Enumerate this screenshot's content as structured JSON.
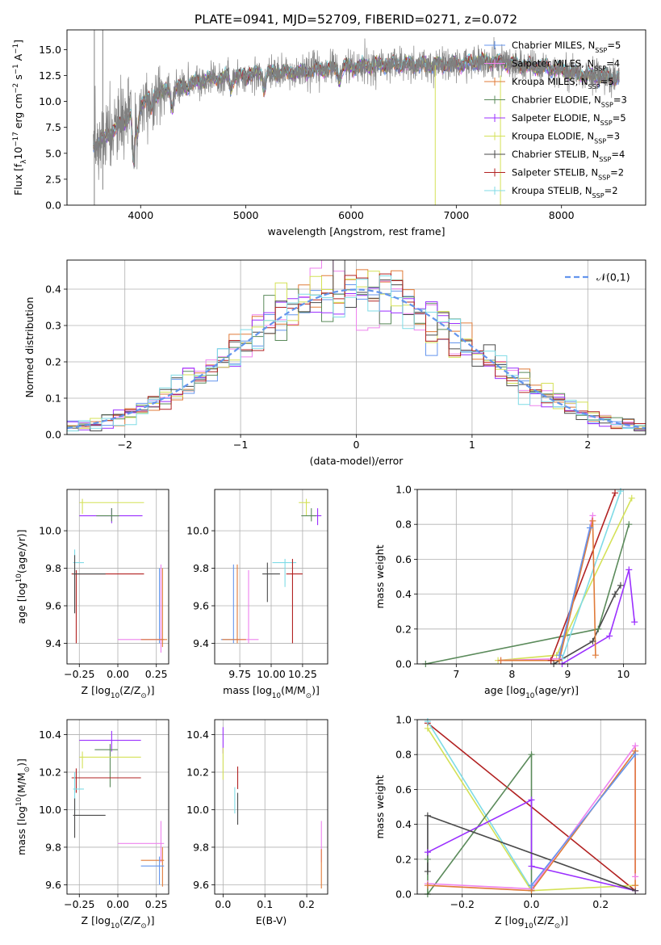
{
  "title": "PLATE=0941, MJD=52709, FIBERID=0271, z=0.072",
  "colors": {
    "chabrier_miles": "#6495ED",
    "salpeter_miles": "#EE82EE",
    "kroupa_miles": "#E07B39",
    "chabrier_elodie": "#5A8A5A",
    "salpeter_elodie": "#9B30FF",
    "kroupa_elodie": "#D4E157",
    "chabrier_stelib": "#4A4A4A",
    "salpeter_stelib": "#B22222",
    "kroupa_stelib": "#7FDBE6",
    "data": "#808080",
    "gaussian": "#6495ED"
  },
  "legend_models": [
    {
      "key": "chabrier_miles",
      "label": "Chabrier MILES, N$SSP$=5"
    },
    {
      "key": "salpeter_miles",
      "label": "Salpeter MILES, N$SSP$=4"
    },
    {
      "key": "kroupa_miles",
      "label": "Kroupa MILES, N$SSP$=5"
    },
    {
      "key": "chabrier_elodie",
      "label": "Chabrier ELODIE, N$SSP$=3"
    },
    {
      "key": "salpeter_elodie",
      "label": "Salpeter ELODIE, N$SSP$=5"
    },
    {
      "key": "kroupa_elodie",
      "label": "Kroupa ELODIE, N$SSP$=3"
    },
    {
      "key": "chabrier_stelib",
      "label": "Chabrier STELIB, N$SSP$=4"
    },
    {
      "key": "salpeter_stelib",
      "label": "Salpeter STELIB, N$SSP$=2"
    },
    {
      "key": "kroupa_stelib",
      "label": "Kroupa STELIB, N$SSP$=2"
    }
  ],
  "chart_data": [
    {
      "id": "spectrum",
      "type": "line",
      "xlabel": "wavelength [Angstrom, rest frame]",
      "ylabel": "Flux [f$λ$10$−17$ erg cm$−2$ s$−1$ A$−1$]",
      "xlim": [
        3300,
        8800
      ],
      "ylim": [
        0,
        16.9
      ],
      "xticks": [
        4000,
        5000,
        6000,
        7000,
        8000
      ],
      "yticks": [
        0.0,
        2.5,
        5.0,
        7.5,
        10.0,
        12.5,
        15.0
      ],
      "grid": false,
      "legend_position": "top-right",
      "continuum": {
        "x": [
          3550,
          3650,
          3750,
          3850,
          3950,
          4050,
          4200,
          4400,
          4600,
          4800,
          5000,
          5200,
          5500,
          5800,
          6100,
          6400,
          6700,
          7000,
          7300,
          7600,
          7900,
          8200,
          8500
        ],
        "y": [
          5.8,
          6.4,
          7.3,
          8.1,
          9.4,
          10.2,
          10.9,
          11.4,
          12.1,
          12.3,
          12.5,
          12.8,
          12.8,
          13.2,
          13.4,
          13.6,
          13.5,
          13.6,
          13.9,
          13.5,
          13.2,
          12.6,
          12.2
        ]
      },
      "absorption_dips": [
        {
          "x": 3934,
          "y": 4.0
        },
        {
          "x": 3969,
          "y": 6.8
        },
        {
          "x": 4101,
          "y": 9.2
        },
        {
          "x": 4300,
          "y": 9.5
        },
        {
          "x": 4861,
          "y": 11.3
        },
        {
          "x": 5175,
          "y": 11.2
        },
        {
          "x": 5890,
          "y": 12.0
        }
      ],
      "data_spikes": [
        {
          "x": 3560,
          "y_high": 16.9,
          "y_low": 0.0
        },
        {
          "x": 3640,
          "y_high": 16.9,
          "y_low": 1.5
        },
        {
          "x": 6800,
          "y_high": 13.5,
          "y_low": 0.0
        },
        {
          "x": 7420,
          "y_high": 12.5,
          "y_low": 0.0
        }
      ],
      "data_end_x": 8550
    },
    {
      "id": "residuals",
      "type": "histogram",
      "xlabel": "(data-model)/error",
      "ylabel": "Normed distribution",
      "xlim": [
        -2.5,
        2.5
      ],
      "ylim": [
        0,
        0.48
      ],
      "xticks": [
        -2,
        -1,
        0,
        1,
        2
      ],
      "yticks": [
        0.0,
        0.1,
        0.2,
        0.3,
        0.4
      ],
      "grid": true,
      "legend_position": "top-right",
      "gaussian_label": "𝒩(0,1)",
      "bin_width": 0.1
    },
    {
      "id": "age_vs_Z",
      "type": "errorbar",
      "xlabel": "Z [log$10$(Z/Z$⊙$)]",
      "ylabel": "age  [log$10$(age/yr)]",
      "xlim": [
        -0.33,
        0.33
      ],
      "ylim": [
        9.29,
        10.22
      ],
      "xticks": [
        -0.25,
        0.0,
        0.25
      ],
      "xticklabels": [
        "−0.25",
        "0.00",
        "0.25"
      ],
      "yticks": [
        9.4,
        9.6,
        9.8,
        10.0
      ],
      "grid": true,
      "points": [
        {
          "key": "kroupa_elodie",
          "x": -0.23,
          "xerr": [
            0.02,
            0.4
          ],
          "y": 10.15,
          "yerr": [
            0.06,
            0.02
          ]
        },
        {
          "key": "salpeter_elodie",
          "x": -0.04,
          "xerr": [
            0.21,
            0.2
          ],
          "y": 10.08,
          "yerr": [
            0.04,
            0.04
          ]
        },
        {
          "key": "chabrier_elodie",
          "x": -0.04,
          "xerr": [
            0.1,
            0.05
          ],
          "y": 10.08,
          "yerr": [
            0.03,
            0.04
          ]
        },
        {
          "key": "kroupa_stelib",
          "x": -0.28,
          "xerr": [
            0.01,
            0.06
          ],
          "y": 9.83,
          "yerr": [
            0.05,
            0.07
          ]
        },
        {
          "key": "salpeter_stelib",
          "x": -0.27,
          "xerr": [
            0.03,
            0.44
          ],
          "y": 9.77,
          "yerr": [
            0.37,
            0.02
          ]
        },
        {
          "key": "chabrier_stelib",
          "x": -0.28,
          "xerr": [
            0.01,
            0.2
          ],
          "y": 9.77,
          "yerr": [
            0.21,
            0.1
          ]
        },
        {
          "key": "chabrier_miles",
          "x": 0.27,
          "xerr": [
            0.12,
            0.03
          ],
          "y": 9.42,
          "yerr": [
            0.02,
            0.38
          ]
        },
        {
          "key": "salpeter_miles",
          "x": 0.28,
          "xerr": [
            0.28,
            0.02
          ],
          "y": 9.42,
          "yerr": [
            0.07,
            0.4
          ]
        },
        {
          "key": "kroupa_miles",
          "x": 0.29,
          "xerr": [
            0.14,
            0.03
          ],
          "y": 9.42,
          "yerr": [
            0.04,
            0.38
          ]
        }
      ]
    },
    {
      "id": "age_vs_mass",
      "type": "errorbar",
      "xlabel": "mass [log$10$(M/M$⊙$)]",
      "xlim": [
        9.55,
        10.45
      ],
      "ylim": [
        9.29,
        10.22
      ],
      "xticks": [
        9.75,
        10.0,
        10.25
      ],
      "xticklabels": [
        "9.75",
        "10.00",
        "10.25"
      ],
      "yticks": [
        9.4,
        9.6,
        9.8,
        10.0
      ],
      "grid": true,
      "points": [
        {
          "key": "kroupa_elodie",
          "x": 10.28,
          "xerr": [
            0.06,
            0.03
          ],
          "y": 10.15,
          "yerr": [
            0.07,
            0.02
          ]
        },
        {
          "key": "salpeter_elodie",
          "x": 10.37,
          "xerr": [
            0.06,
            0.03
          ],
          "y": 10.08,
          "yerr": [
            0.05,
            0.04
          ]
        },
        {
          "key": "chabrier_elodie",
          "x": 10.32,
          "xerr": [
            0.08,
            0.04
          ],
          "y": 10.08,
          "yerr": [
            0.03,
            0.04
          ]
        },
        {
          "key": "kroupa_stelib",
          "x": 10.11,
          "xerr": [
            0.1,
            0.09
          ],
          "y": 9.83,
          "yerr": [
            0.13,
            0.02
          ]
        },
        {
          "key": "salpeter_stelib",
          "x": 10.17,
          "xerr": [
            0.05,
            0.08
          ],
          "y": 9.77,
          "yerr": [
            0.37,
            0.08
          ]
        },
        {
          "key": "chabrier_stelib",
          "x": 9.97,
          "xerr": [
            0.04,
            0.1
          ],
          "y": 9.77,
          "yerr": [
            0.15,
            0.06
          ]
        },
        {
          "key": "chabrier_miles",
          "x": 9.7,
          "xerr": [
            0.1,
            0.05
          ],
          "y": 9.42,
          "yerr": [
            0.02,
            0.4
          ]
        },
        {
          "key": "salpeter_miles",
          "x": 9.82,
          "xerr": [
            0.1,
            0.08
          ],
          "y": 9.42,
          "yerr": [
            0.02,
            0.37
          ]
        },
        {
          "key": "kroupa_miles",
          "x": 9.73,
          "xerr": [
            0.12,
            0.07
          ],
          "y": 9.42,
          "yerr": [
            0.02,
            0.4
          ]
        }
      ]
    },
    {
      "id": "weight_vs_age",
      "type": "line",
      "xlabel": "age  [log$10$(age/yr)]",
      "ylabel": "mass weight",
      "xlim": [
        6.3,
        10.4
      ],
      "ylim": [
        0,
        1.0
      ],
      "xticks": [
        7,
        8,
        9,
        10
      ],
      "yticks": [
        0.0,
        0.2,
        0.4,
        0.6,
        0.8,
        1.0
      ],
      "grid": true,
      "series": [
        {
          "key": "chabrier_elodie",
          "x": [
            6.45,
            9.55,
            10.1
          ],
          "y": [
            0.0,
            0.2,
            0.8
          ]
        },
        {
          "key": "kroupa_elodie",
          "x": [
            7.75,
            8.8,
            10.15
          ],
          "y": [
            0.02,
            0.05,
            0.95
          ]
        },
        {
          "key": "salpeter_elodie",
          "x": [
            8.9,
            9.75,
            10.1,
            10.2
          ],
          "y": [
            0.0,
            0.16,
            0.54,
            0.24
          ]
        },
        {
          "key": "chabrier_stelib",
          "x": [
            8.75,
            9.45,
            9.85,
            9.95
          ],
          "y": [
            0.0,
            0.13,
            0.4,
            0.45
          ]
        },
        {
          "key": "salpeter_stelib",
          "x": [
            8.7,
            9.85
          ],
          "y": [
            0.02,
            0.98
          ]
        },
        {
          "key": "kroupa_stelib",
          "x": [
            8.9,
            9.95
          ],
          "y": [
            0.03,
            0.99
          ]
        },
        {
          "key": "salpeter_miles",
          "x": [
            7.8,
            8.85,
            9.45
          ],
          "y": [
            0.02,
            0.03,
            0.85
          ]
        },
        {
          "key": "kroupa_miles",
          "x": [
            7.8,
            8.85,
            9.45,
            9.5
          ],
          "y": [
            0.02,
            0.02,
            0.82,
            0.05
          ]
        },
        {
          "key": "chabrier_miles",
          "x": [
            8.85,
            9.4
          ],
          "y": [
            0.05,
            0.78
          ]
        }
      ]
    },
    {
      "id": "mass_vs_Z",
      "type": "errorbar",
      "xlabel": "Z [log$10$(Z/Z$⊙$)]",
      "ylabel": "mass [log$10$(M/M$⊙$)]",
      "xlim": [
        -0.33,
        0.33
      ],
      "ylim": [
        9.55,
        10.48
      ],
      "xticks": [
        -0.25,
        0.0,
        0.25
      ],
      "xticklabels": [
        "−0.25",
        "0.00",
        "0.25"
      ],
      "yticks": [
        9.6,
        9.8,
        10.0,
        10.2,
        10.4
      ],
      "grid": true,
      "points": [
        {
          "key": "salpeter_elodie",
          "x": -0.04,
          "xerr": [
            0.21,
            0.19
          ],
          "y": 10.37,
          "yerr": [
            0.06,
            0.05
          ]
        },
        {
          "key": "chabrier_elodie",
          "x": -0.05,
          "xerr": [
            0.1,
            0.05
          ],
          "y": 10.32,
          "yerr": [
            0.2,
            0.03
          ]
        },
        {
          "key": "kroupa_elodie",
          "x": -0.23,
          "xerr": [
            0.02,
            0.38
          ],
          "y": 10.28,
          "yerr": [
            0.06,
            0.03
          ]
        },
        {
          "key": "salpeter_stelib",
          "x": -0.27,
          "xerr": [
            0.03,
            0.42
          ],
          "y": 10.17,
          "yerr": [
            0.08,
            0.05
          ]
        },
        {
          "key": "kroupa_stelib",
          "x": -0.28,
          "xerr": [
            0.01,
            0.06
          ],
          "y": 10.11,
          "yerr": [
            0.13,
            0.09
          ]
        },
        {
          "key": "chabrier_stelib",
          "x": -0.28,
          "xerr": [
            0.01,
            0.2
          ],
          "y": 9.97,
          "yerr": [
            0.12,
            0.09
          ]
        },
        {
          "key": "salpeter_miles",
          "x": 0.28,
          "xerr": [
            0.28,
            0.02
          ],
          "y": 9.82,
          "yerr": [
            0.1,
            0.12
          ]
        },
        {
          "key": "kroupa_miles",
          "x": 0.29,
          "xerr": [
            0.14,
            0.01
          ],
          "y": 9.73,
          "yerr": [
            0.14,
            0.07
          ]
        },
        {
          "key": "chabrier_miles",
          "x": 0.27,
          "xerr": [
            0.12,
            0.03
          ],
          "y": 9.7,
          "yerr": [
            0.1,
            0.05
          ]
        }
      ]
    },
    {
      "id": "mass_vs_ebv",
      "type": "errorbar",
      "xlabel": "E(B-V)",
      "xlim": [
        -0.02,
        0.25
      ],
      "ylim": [
        9.55,
        10.48
      ],
      "xticks": [
        0.0,
        0.1,
        0.2
      ],
      "xticklabels": [
        "0.0",
        "0.1",
        "0.2"
      ],
      "yticks": [
        9.6,
        9.8,
        10.0,
        10.2,
        10.4
      ],
      "grid": true,
      "points": [
        {
          "key": "salpeter_elodie",
          "x": 0.0,
          "xerr": [
            0.0,
            0.0
          ],
          "y": 10.37,
          "yerr": [
            0.07,
            0.07
          ]
        },
        {
          "key": "kroupa_elodie",
          "x": 0.0,
          "xerr": [
            0.0,
            0.0
          ],
          "y": 10.26,
          "yerr": [
            0.1,
            0.07
          ]
        },
        {
          "key": "salpeter_stelib",
          "x": 0.035,
          "xerr": [
            0.0,
            0.0
          ],
          "y": 10.17,
          "yerr": [
            0.06,
            0.06
          ]
        },
        {
          "key": "kroupa_stelib",
          "x": 0.028,
          "xerr": [
            0.0,
            0.0
          ],
          "y": 10.08,
          "yerr": [
            0.1,
            0.04
          ]
        },
        {
          "key": "chabrier_stelib",
          "x": 0.035,
          "xerr": [
            0.0,
            0.0
          ],
          "y": 9.97,
          "yerr": [
            0.05,
            0.12
          ]
        },
        {
          "key": "salpeter_miles",
          "x": 0.235,
          "xerr": [
            0.0,
            0.0
          ],
          "y": 9.82,
          "yerr": [
            0.1,
            0.12
          ]
        },
        {
          "key": "kroupa_miles",
          "x": 0.235,
          "xerr": [
            0.0,
            0.0
          ],
          "y": 9.72,
          "yerr": [
            0.14,
            0.07
          ]
        }
      ]
    },
    {
      "id": "weight_vs_Z",
      "type": "line",
      "xlabel": "Z [log$10$(Z/Z$⊙$)]",
      "ylabel": "mass weight",
      "xlim": [
        -0.33,
        0.33
      ],
      "ylim": [
        0,
        1.0
      ],
      "xticks": [
        -0.2,
        0.0,
        0.2
      ],
      "xticklabels": [
        "−0.2",
        "0.0",
        "0.2"
      ],
      "yticks": [
        0.0,
        0.2,
        0.4,
        0.6,
        0.8,
        1.0
      ],
      "grid": true,
      "series": [
        {
          "key": "salpeter_stelib",
          "x": [
            -0.3,
            0.3
          ],
          "y": [
            0.98,
            0.02
          ]
        },
        {
          "key": "kroupa_stelib",
          "x": [
            -0.3,
            0.0
          ],
          "y": [
            0.99,
            0.03
          ]
        },
        {
          "key": "kroupa_elodie",
          "x": [
            -0.3,
            0.0,
            0.3
          ],
          "y": [
            0.95,
            0.02,
            0.05
          ]
        },
        {
          "key": "chabrier_elodie",
          "x": [
            -0.3,
            -0.3,
            0.0,
            0.0
          ],
          "y": [
            0.2,
            0.0,
            0.8,
            0.02
          ]
        },
        {
          "key": "salpeter_elodie",
          "x": [
            -0.3,
            0.0,
            0.0,
            0.3
          ],
          "y": [
            0.24,
            0.54,
            0.16,
            0.02
          ]
        },
        {
          "key": "chabrier_stelib",
          "x": [
            -0.3,
            -0.3,
            0.3
          ],
          "y": [
            0.13,
            0.45,
            0.02
          ]
        },
        {
          "key": "salpeter_miles",
          "x": [
            -0.3,
            0.0,
            0.3,
            0.3
          ],
          "y": [
            0.06,
            0.03,
            0.85,
            0.1
          ]
        },
        {
          "key": "kroupa_miles",
          "x": [
            -0.3,
            0.0,
            0.3,
            0.3
          ],
          "y": [
            0.05,
            0.02,
            0.82,
            0.05
          ]
        },
        {
          "key": "chabrier_miles",
          "x": [
            0.0,
            0.3
          ],
          "y": [
            0.05,
            0.8
          ]
        }
      ]
    }
  ]
}
